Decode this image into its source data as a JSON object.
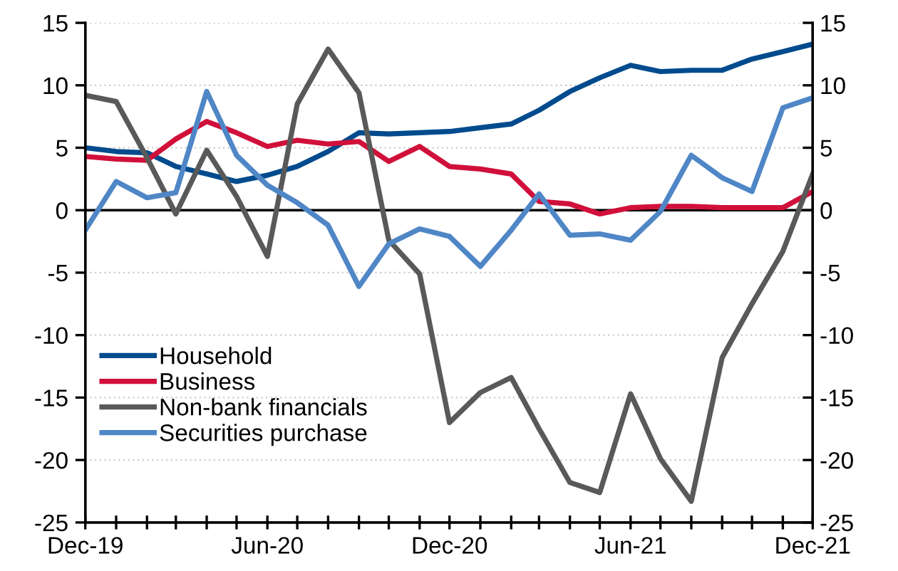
{
  "chart_data": {
    "type": "line",
    "x": [
      "2019-12",
      "2020-01",
      "2020-02",
      "2020-03",
      "2020-04",
      "2020-05",
      "2020-06",
      "2020-07",
      "2020-08",
      "2020-09",
      "2020-10",
      "2020-11",
      "2020-12",
      "2021-01",
      "2021-02",
      "2021-03",
      "2021-04",
      "2021-05",
      "2021-06",
      "2021-07",
      "2021-08",
      "2021-09",
      "2021-10",
      "2021-11",
      "2021-12"
    ],
    "series": [
      {
        "name": "Household",
        "color": "#004b8d",
        "values": [
          5.0,
          4.7,
          4.6,
          3.5,
          2.9,
          2.3,
          2.8,
          3.5,
          4.7,
          6.2,
          6.1,
          6.2,
          6.3,
          6.6,
          6.9,
          8.0,
          9.5,
          10.6,
          11.6,
          11.1,
          11.2,
          11.2,
          12.1,
          12.7,
          13.3
        ]
      },
      {
        "name": "Business",
        "color": "#d0103a",
        "values": [
          4.3,
          4.1,
          4.0,
          5.7,
          7.1,
          6.2,
          5.1,
          5.6,
          5.3,
          5.5,
          3.9,
          5.1,
          3.5,
          3.3,
          2.9,
          0.7,
          0.5,
          -0.3,
          0.2,
          0.3,
          0.3,
          0.2,
          0.2,
          0.2,
          1.5
        ]
      },
      {
        "name": "Non-bank financials",
        "color": "#595959",
        "values": [
          9.2,
          8.7,
          4.2,
          -0.3,
          4.8,
          1.1,
          -3.7,
          8.5,
          12.9,
          9.4,
          -2.4,
          -5.1,
          -17.0,
          -14.6,
          -13.4,
          -17.5,
          -21.8,
          -22.6,
          -14.7,
          -19.9,
          -23.3,
          -11.8,
          -7.5,
          -3.3,
          2.9
        ]
      },
      {
        "name": "Securities purchase",
        "color": "#4f86c6",
        "values": [
          -1.6,
          2.3,
          1.0,
          1.4,
          9.5,
          4.4,
          2.0,
          0.6,
          -1.2,
          -6.1,
          -2.7,
          -1.5,
          -2.1,
          -4.5,
          -1.6,
          1.3,
          -2.0,
          -1.9,
          -2.4,
          -0.1,
          4.4,
          2.6,
          1.5,
          8.2,
          9.0
        ]
      }
    ],
    "xlim": [
      "2019-12",
      "2021-12"
    ],
    "xticks": [
      {
        "value": "2019-12",
        "label": "Dec-19"
      },
      {
        "value": "2020-01",
        "label": null
      },
      {
        "value": "2020-02",
        "label": null
      },
      {
        "value": "2020-03",
        "label": null
      },
      {
        "value": "2020-04",
        "label": null
      },
      {
        "value": "2020-05",
        "label": null
      },
      {
        "value": "2020-06",
        "label": "Jun-20"
      },
      {
        "value": "2020-07",
        "label": null
      },
      {
        "value": "2020-08",
        "label": null
      },
      {
        "value": "2020-09",
        "label": null
      },
      {
        "value": "2020-10",
        "label": null
      },
      {
        "value": "2020-11",
        "label": null
      },
      {
        "value": "2020-12",
        "label": "Dec-20"
      },
      {
        "value": "2021-01",
        "label": null
      },
      {
        "value": "2021-02",
        "label": null
      },
      {
        "value": "2021-03",
        "label": null
      },
      {
        "value": "2021-04",
        "label": null
      },
      {
        "value": "2021-05",
        "label": null
      },
      {
        "value": "2021-06",
        "label": "Jun-21"
      },
      {
        "value": "2021-07",
        "label": null
      },
      {
        "value": "2021-08",
        "label": null
      },
      {
        "value": "2021-09",
        "label": null
      },
      {
        "value": "2021-10",
        "label": null
      },
      {
        "value": "2021-11",
        "label": null
      },
      {
        "value": "2021-12",
        "label": "Dec-21"
      }
    ],
    "ylim": [
      -25,
      15
    ],
    "yticks": [
      -25,
      -20,
      -15,
      -10,
      -5,
      0,
      5,
      10,
      15
    ],
    "y2lim": [
      -25,
      15
    ],
    "y2ticks": [
      -25,
      -20,
      -15,
      -10,
      -5,
      0,
      5,
      10,
      15
    ],
    "ref_lines": [
      {
        "axis": "y",
        "value": 0,
        "color": "#000000"
      }
    ],
    "grid": "y",
    "legend": "bottom left",
    "marker": "none",
    "line_style": "solid"
  }
}
